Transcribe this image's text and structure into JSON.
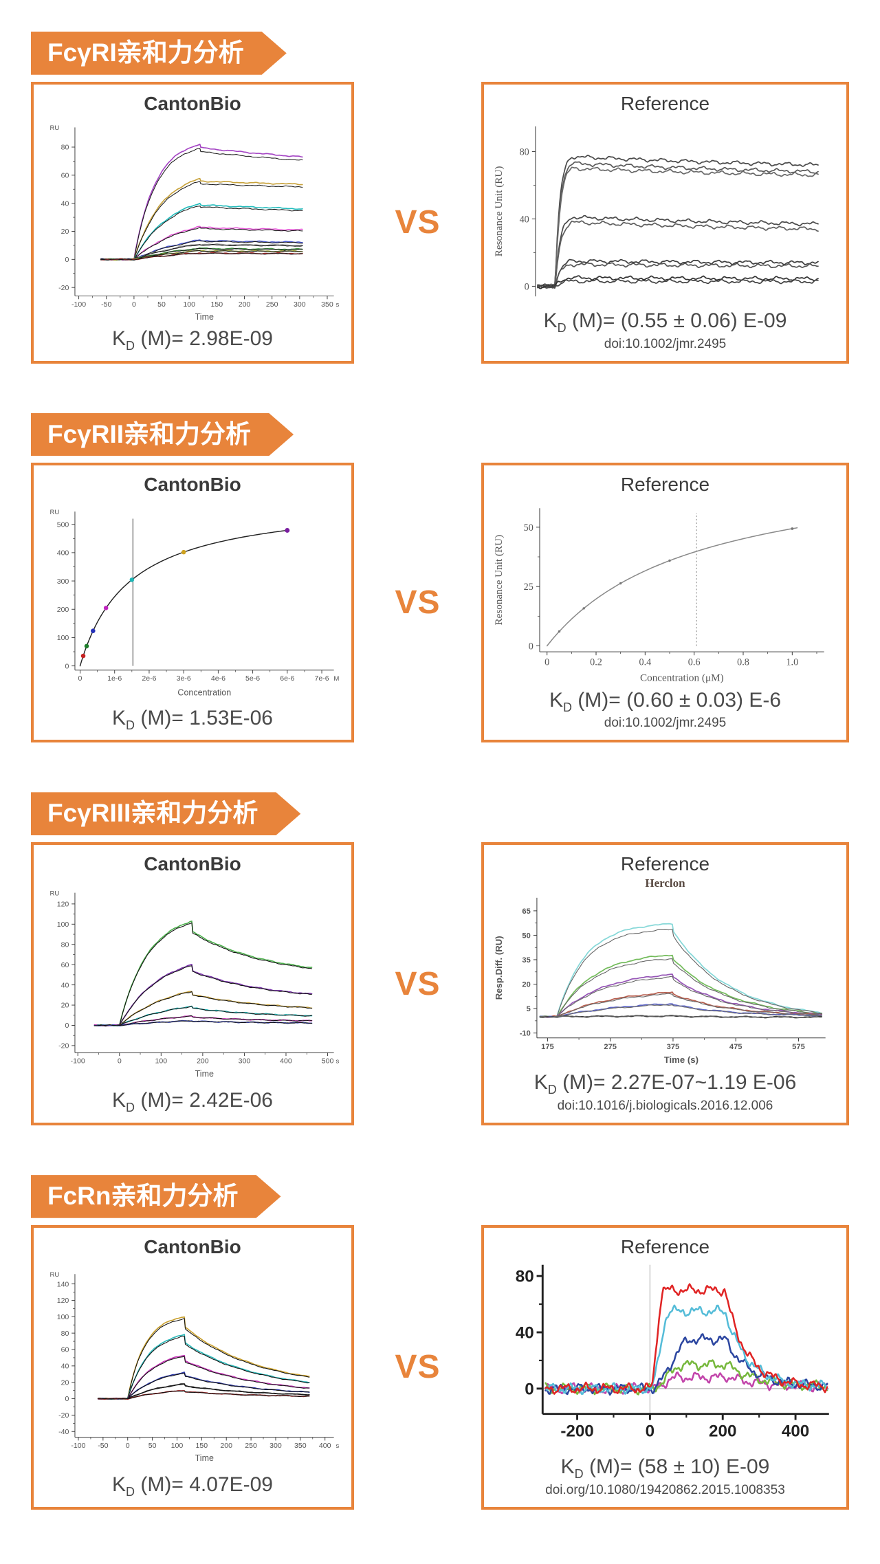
{
  "page": {
    "accent": "#E8843B",
    "background": "#ffffff"
  },
  "sections": [
    {
      "header": "FcγRI亲和力分析",
      "vs": "VS",
      "left": {
        "title": "CantonBio",
        "kd_k": "K",
        "kd_sub": "D",
        "kd_rest": " (M)= 2.98E-09",
        "chart_index": 0
      },
      "right": {
        "title": "Reference",
        "kd_k": "K",
        "kd_sub": "D",
        "kd_rest": " (M)= (0.55 ± 0.06) E-09",
        "doi": "doi:10.1002/jmr.2495",
        "chart_index": 1
      }
    },
    {
      "header": "FcγRII亲和力分析",
      "vs": "VS",
      "left": {
        "title": "CantonBio",
        "kd_k": "K",
        "kd_sub": "D",
        "kd_rest": " (M)= 1.53E-06",
        "chart_index": 2
      },
      "right": {
        "title": "Reference",
        "kd_k": "K",
        "kd_sub": "D",
        "kd_rest": " (M)= (0.60 ± 0.03) E-6",
        "doi": "doi:10.1002/jmr.2495",
        "chart_index": 3
      }
    },
    {
      "header": "FcγRIII亲和力分析",
      "vs": "VS",
      "left": {
        "title": "CantonBio",
        "kd_k": "K",
        "kd_sub": "D",
        "kd_rest": " (M)= 2.42E-06",
        "chart_index": 4
      },
      "right": {
        "title": "Reference",
        "subtitle": "Herclon",
        "kd_k": "K",
        "kd_sub": "D",
        "kd_rest": " (M)= 2.27E-07~1.19 E-06",
        "doi": "doi:10.1016/j.biologicals.2016.12.006",
        "chart_index": 5
      }
    },
    {
      "header": "FcRn亲和力分析",
      "vs": "VS",
      "left": {
        "title": "CantonBio",
        "kd_k": "K",
        "kd_sub": "D",
        "kd_rest": " (M)= 4.07E-09",
        "chart_index": 6
      },
      "right": {
        "title": "Reference",
        "kd_k": "K",
        "kd_sub": "D",
        "kd_rest": " (M)= (58 ± 10) E-09",
        "doi": "doi.org/10.1080/19420862.2015.1008353",
        "chart_index": 7
      }
    }
  ],
  "chart_data": [
    {
      "type": "line",
      "subtype": "kinetic",
      "corner": "RU",
      "xlabel": "Time",
      "x_unit": "s",
      "vb": [
        460,
        315
      ],
      "m": [
        52,
        16,
        16,
        44
      ],
      "x_range": [
        -107,
        362
      ],
      "y_range": [
        -26,
        94
      ],
      "x_ticks": [
        {
          "v": -100,
          "l": "-100"
        },
        {
          "v": -50,
          "l": "-50"
        },
        {
          "v": 0,
          "l": "0"
        },
        {
          "v": 50,
          "l": "50"
        },
        {
          "v": 100,
          "l": "100"
        },
        {
          "v": 150,
          "l": "150"
        },
        {
          "v": 200,
          "l": "200"
        },
        {
          "v": 250,
          "l": "250"
        },
        {
          "v": 300,
          "l": "300"
        },
        {
          "v": 350,
          "l": "350"
        }
      ],
      "x_minor": [
        -75,
        -25,
        25,
        75,
        125,
        175,
        225,
        275,
        325
      ],
      "y_ticks": [
        {
          "v": 80,
          "l": "80"
        },
        {
          "v": 60,
          "l": "60"
        },
        {
          "v": 40,
          "l": "40"
        },
        {
          "v": 20,
          "l": "20"
        },
        {
          "v": 0,
          "l": "0"
        },
        {
          "v": -20,
          "l": "-20"
        }
      ],
      "y_minor": [
        70,
        50,
        30,
        10,
        -10
      ],
      "t_base": -60,
      "t_on": 0,
      "t_peak": 120,
      "t_end": 305,
      "drop": 0.97,
      "decay": 0.35,
      "rise": [
        0.7,
        3.1
      ],
      "noise": 0.25,
      "fit": {
        "color": "#1a1a1a",
        "scale": 0.965
      },
      "series": [
        {
          "color": "#a444c4",
          "peak": 82,
          "end": 73
        },
        {
          "color": "#c8a23a",
          "peak": 57.5,
          "end": 53.5
        },
        {
          "color": "#22bcbc",
          "peak": 40,
          "end": 36
        },
        {
          "color": "#e35ad6",
          "peak": 23.5,
          "end": 21
        },
        {
          "color": "#4a58cc",
          "peak": 13.8,
          "end": 12.2
        },
        {
          "color": "#8c8c8c",
          "peak": 11,
          "end": 10
        },
        {
          "color": "#3f9040",
          "peak": 8,
          "end": 7.2
        },
        {
          "color": "#9aa03c",
          "peak": 6.3,
          "end": 5.8
        },
        {
          "color": "#a02a2a",
          "peak": 4.6,
          "end": 4.2
        }
      ]
    },
    {
      "type": "line",
      "subtype": "kinetic",
      "serif": true,
      "ylabel": "Resonance Unit (RU)",
      "x_axis": false,
      "vb": [
        500,
        270
      ],
      "m": [
        64,
        12,
        18,
        14
      ],
      "tick_fs": 14,
      "label_fs": 15,
      "x_range": [
        -45,
        620
      ],
      "y_range": [
        -6,
        95
      ],
      "y_ticks": [
        {
          "v": 80,
          "l": "80"
        },
        {
          "v": 40,
          "l": "40"
        },
        {
          "v": 0,
          "l": "0"
        }
      ],
      "y_minor": [
        60,
        20
      ],
      "t_base": -40,
      "t_on": 0,
      "t_peak": 38,
      "t_end": 600,
      "drop": 1,
      "decay": 0.7,
      "rise": [
        3.0,
        3.6
      ],
      "noise": 0.7,
      "series": [
        {
          "color": "#4a4a4a",
          "peak": 77,
          "end": 72
        },
        {
          "color": "#5a5a5a",
          "peak": 73,
          "end": 68
        },
        {
          "color": "#6a6a6a",
          "peak": 70,
          "end": 66
        },
        {
          "color": "#4a4a4a",
          "peak": 41,
          "end": 37
        },
        {
          "color": "#5f5f5f",
          "peak": 38,
          "end": 34
        },
        {
          "color": "#3f3f3f",
          "peak": 15,
          "end": 14
        },
        {
          "color": "#555555",
          "peak": 13,
          "end": 12
        },
        {
          "color": "#333333",
          "peak": 5,
          "end": 4.5
        },
        {
          "color": "#444444",
          "peak": 3,
          "end": 2.8
        }
      ]
    },
    {
      "type": "line",
      "subtype": "saturation",
      "corner": "RU",
      "xlabel": "Concentration",
      "x_unit": "M",
      "vb": [
        460,
        300
      ],
      "m": [
        52,
        14,
        16,
        46
      ],
      "x_range": [
        -1.5e-07,
        7.35e-06
      ],
      "y_range": [
        -15,
        545
      ],
      "x_ticks": [
        {
          "v": 0,
          "l": "0"
        },
        {
          "v": 1e-06,
          "l": "1e-6"
        },
        {
          "v": 2e-06,
          "l": "2e-6"
        },
        {
          "v": 3e-06,
          "l": "3e-6"
        },
        {
          "v": 4e-06,
          "l": "4e-6"
        },
        {
          "v": 5e-06,
          "l": "5e-6"
        },
        {
          "v": 6e-06,
          "l": "6e-6"
        },
        {
          "v": 7e-06,
          "l": "7e-6"
        }
      ],
      "x_minor": [
        5e-07,
        1.5e-06,
        2.5e-06,
        3.5e-06,
        4.5e-06,
        5.5e-06,
        6.5e-06
      ],
      "y_ticks": [
        {
          "v": 500,
          "l": "500"
        },
        {
          "v": 400,
          "l": "400"
        },
        {
          "v": 300,
          "l": "300"
        },
        {
          "v": 200,
          "l": "200"
        },
        {
          "v": 100,
          "l": "100"
        },
        {
          "v": 0,
          "l": "0"
        }
      ],
      "y_minor": [
        450,
        350,
        250,
        150,
        50
      ],
      "sat": {
        "rmax": 592,
        "k": 1.42e-06,
        "color": "#222222",
        "xmax": 6.05e-06
      },
      "vline": {
        "x": 1.53e-06,
        "y1": 0,
        "y2": 520,
        "color": "#555555"
      },
      "points": [
        {
          "x": 9e-08,
          "color": "#c42222",
          "r": 3.4
        },
        {
          "x": 1.9e-07,
          "color": "#1e7e2a",
          "r": 3.4
        },
        {
          "x": 3.75e-07,
          "color": "#2430b8",
          "r": 3.4
        },
        {
          "x": 7.5e-07,
          "color": "#c024c0",
          "r": 3.4
        },
        {
          "x": 1.5e-06,
          "color": "#1fb6b6",
          "r": 3.4
        },
        {
          "x": 3e-06,
          "color": "#cfa21e",
          "r": 3.4
        },
        {
          "x": 6e-06,
          "color": "#7a1ea0",
          "r": 3.6
        }
      ]
    },
    {
      "type": "line",
      "subtype": "saturation",
      "serif": true,
      "ylabel": "Resonance Unit (RU)",
      "xlabel": "Concentration (μM)",
      "vb": [
        500,
        270
      ],
      "m": [
        70,
        14,
        22,
        50
      ],
      "tick_fs": 14,
      "label_fs": 15,
      "x_range": [
        -0.03,
        1.13
      ],
      "y_range": [
        -2.5,
        58
      ],
      "x_ticks": [
        {
          "v": 0,
          "l": "0"
        },
        {
          "v": 0.2,
          "l": "0.2"
        },
        {
          "v": 0.4,
          "l": "0.4"
        },
        {
          "v": 0.6,
          "l": "0.6"
        },
        {
          "v": 0.8,
          "l": "0.8"
        },
        {
          "v": 1.0,
          "l": "1.0"
        }
      ],
      "x_minor": [
        0.1,
        0.3,
        0.5,
        0.7,
        0.9,
        1.1
      ],
      "y_ticks": [
        {
          "v": 50,
          "l": "50"
        },
        {
          "v": 25,
          "l": "25"
        },
        {
          "v": 0,
          "l": "0"
        }
      ],
      "y_minor": [
        37.5,
        12.5
      ],
      "sat": {
        "rmax": 79,
        "k": 0.6,
        "color": "#8a8a8a",
        "xmax": 1.02
      },
      "vline": {
        "x": 0.61,
        "y1": 0,
        "y2": 56,
        "color": "#9a9a9a",
        "dash": "2 3"
      },
      "points": [
        {
          "x": 0.05,
          "color": "#777777",
          "r": 1.7
        },
        {
          "x": 0.15,
          "color": "#777777",
          "r": 1.7
        },
        {
          "x": 0.3,
          "color": "#777777",
          "r": 1.7
        },
        {
          "x": 0.5,
          "color": "#777777",
          "r": 1.7
        },
        {
          "x": 1.0,
          "color": "#777777",
          "r": 1.9
        }
      ]
    },
    {
      "type": "line",
      "subtype": "kinetic",
      "corner": "RU",
      "xlabel": "Time",
      "x_unit": "s",
      "vb": [
        460,
        300
      ],
      "m": [
        52,
        14,
        16,
        44
      ],
      "x_range": [
        -107,
        515
      ],
      "y_range": [
        -27,
        131
      ],
      "x_ticks": [
        {
          "v": -100,
          "l": "-100"
        },
        {
          "v": 0,
          "l": "0"
        },
        {
          "v": 100,
          "l": "100"
        },
        {
          "v": 200,
          "l": "200"
        },
        {
          "v": 300,
          "l": "300"
        },
        {
          "v": 400,
          "l": "400"
        },
        {
          "v": 500,
          "l": "500"
        }
      ],
      "x_minor": [
        -50,
        50,
        150,
        250,
        350,
        450
      ],
      "y_ticks": [
        {
          "v": 120,
          "l": "120"
        },
        {
          "v": 100,
          "l": "100"
        },
        {
          "v": 80,
          "l": "80"
        },
        {
          "v": 60,
          "l": "60"
        },
        {
          "v": 40,
          "l": "40"
        },
        {
          "v": 20,
          "l": "20"
        },
        {
          "v": 0,
          "l": "0"
        },
        {
          "v": -20,
          "l": "-20"
        }
      ],
      "y_minor": [
        110,
        90,
        70,
        50,
        30,
        10,
        -10
      ],
      "t_base": -60,
      "t_on": 0,
      "t_peak": 175,
      "t_end": 462,
      "drop": 0.9,
      "decay": 1.6,
      "rise": [
        0.8,
        2.6
      ],
      "noise": 0.3,
      "fit": {
        "color": "#111111",
        "scale": 0.985
      },
      "series": [
        {
          "color": "#4cb04c",
          "peak": 103,
          "end": 57
        },
        {
          "color": "#7a34aa",
          "peak": 60,
          "end": 31
        },
        {
          "color": "#c8a23a",
          "peak": 34,
          "end": 17.5
        },
        {
          "color": "#27b9b9",
          "peak": 19,
          "end": 9.5
        },
        {
          "color": "#cc38bc",
          "peak": 9.2,
          "end": 4.5
        },
        {
          "color": "#3a46b4",
          "peak": 4.6,
          "end": 2.4
        }
      ]
    },
    {
      "type": "line",
      "subtype": "kinetic",
      "ylabel": "Resp.Diff. (RU)",
      "xlabel": "Time (s)",
      "vb": [
        500,
        255
      ],
      "m": [
        66,
        10,
        20,
        44
      ],
      "tick_fs": 11,
      "label_fs": 13,
      "tick_bold": true,
      "label_bold": true,
      "x_range": [
        158,
        618
      ],
      "y_range": [
        -13,
        73
      ],
      "x_ticks": [
        {
          "v": 175,
          "l": "175"
        },
        {
          "v": 275,
          "l": "275"
        },
        {
          "v": 375,
          "l": "375"
        },
        {
          "v": 475,
          "l": "475"
        },
        {
          "v": 575,
          "l": "575"
        }
      ],
      "x_minor": [
        225,
        325,
        425,
        525
      ],
      "y_ticks": [
        {
          "v": 65,
          "l": "65"
        },
        {
          "v": 50,
          "l": "50"
        },
        {
          "v": 35,
          "l": "35"
        },
        {
          "v": 20,
          "l": "20"
        },
        {
          "v": 5,
          "l": "5"
        },
        {
          "v": -10,
          "l": "-10"
        }
      ],
      "y_minor": [
        57.5,
        42.5,
        27.5,
        12.5,
        -2.5
      ],
      "t_base": 163,
      "t_on": 190,
      "t_peak": 375,
      "t_end": 612,
      "drop": 0.93,
      "decay": 2.6,
      "rise": [
        1.2,
        4.2
      ],
      "noise": 0.25,
      "fit": {
        "color": "#686868",
        "scale": 0.94
      },
      "series": [
        {
          "color": "#86d8d8",
          "peak": 57,
          "end": 2.5
        },
        {
          "color": "#74bc5c",
          "peak": 38,
          "end": 2
        },
        {
          "color": "#9656b6",
          "peak": 26,
          "end": 1.5
        },
        {
          "color": "#b65e4e",
          "peak": 15,
          "end": 1.2
        },
        {
          "color": "#5c64c6",
          "peak": 8,
          "end": 0.8
        },
        {
          "color": "#3a3a3a",
          "peak": 0.4,
          "end": -0.3
        }
      ]
    },
    {
      "type": "line",
      "subtype": "kinetic",
      "corner": "RU",
      "xlabel": "Time",
      "x_unit": "s",
      "vb": [
        460,
        305
      ],
      "m": [
        52,
        14,
        16,
        44
      ],
      "x_range": [
        -107,
        418
      ],
      "y_range": [
        -47,
        152
      ],
      "x_ticks": [
        {
          "v": -100,
          "l": "-100"
        },
        {
          "v": -50,
          "l": "-50"
        },
        {
          "v": 0,
          "l": "0"
        },
        {
          "v": 50,
          "l": "50"
        },
        {
          "v": 100,
          "l": "100"
        },
        {
          "v": 150,
          "l": "150"
        },
        {
          "v": 200,
          "l": "200"
        },
        {
          "v": 250,
          "l": "250"
        },
        {
          "v": 300,
          "l": "300"
        },
        {
          "v": 350,
          "l": "350"
        },
        {
          "v": 400,
          "l": "400"
        }
      ],
      "x_minor": [
        -75,
        -25,
        25,
        75,
        125,
        175,
        225,
        275,
        325,
        375
      ],
      "y_ticks": [
        {
          "v": 140,
          "l": "140"
        },
        {
          "v": 120,
          "l": "120"
        },
        {
          "v": 100,
          "l": "100"
        },
        {
          "v": 80,
          "l": "80"
        },
        {
          "v": 60,
          "l": "60"
        },
        {
          "v": 40,
          "l": "40"
        },
        {
          "v": 20,
          "l": "20"
        },
        {
          "v": 0,
          "l": "0"
        },
        {
          "v": -20,
          "l": "-20"
        },
        {
          "v": -40,
          "l": "-40"
        }
      ],
      "y_minor": [
        130,
        110,
        90,
        70,
        50,
        30,
        10,
        -10,
        -30
      ],
      "t_base": -60,
      "t_on": 0,
      "t_peak": 115,
      "t_end": 368,
      "drop": 0.88,
      "decay": 1.7,
      "rise": [
        1.1,
        3.3
      ],
      "noise": 0.3,
      "fit": {
        "color": "#111111",
        "scale": 0.975
      },
      "series": [
        {
          "color": "#c9a02e",
          "peak": 100,
          "end": 27
        },
        {
          "color": "#2bb8b8",
          "peak": 78,
          "end": 20
        },
        {
          "color": "#c232b4",
          "peak": 53,
          "end": 13
        },
        {
          "color": "#2a36a4",
          "peak": 32,
          "end": 8
        },
        {
          "color": "#2e2e2e",
          "peak": 18,
          "end": 5
        },
        {
          "color": "#962222",
          "peak": 10,
          "end": 3
        }
      ]
    },
    {
      "type": "line",
      "subtype": "peak",
      "vb": [
        520,
        292
      ],
      "m": [
        76,
        8,
        14,
        60
      ],
      "tick_fs": 25,
      "tick_bold": true,
      "axis_w": 3,
      "tick_len": 9,
      "tick_color": "#222222",
      "axis_color": "#222222",
      "cross": true,
      "x_range": [
        -295,
        492
      ],
      "y_range": [
        -18,
        88
      ],
      "x_ticks": [
        {
          "v": -200,
          "l": "-200"
        },
        {
          "v": 0,
          "l": "0"
        },
        {
          "v": 200,
          "l": "200"
        },
        {
          "v": 400,
          "l": "400"
        }
      ],
      "x_minor": [
        -100,
        100,
        300
      ],
      "y_ticks": [
        {
          "v": 0,
          "l": "0"
        },
        {
          "v": 40,
          "l": "40"
        },
        {
          "v": 80,
          "l": "80"
        }
      ],
      "y_minor": [
        20,
        60
      ],
      "plateau": 205,
      "noise": 2.2,
      "series": [
        {
          "color": "#c244aa",
          "peak": 8,
          "rise": 80,
          "tau": 90
        },
        {
          "color": "#76b83c",
          "peak": 17,
          "rise": 95,
          "tau": 85
        },
        {
          "color": "#2c46a0",
          "peak": 35,
          "rise": 115,
          "tau": 70
        },
        {
          "color": "#54bcd8",
          "peak": 55,
          "rise": 55,
          "tau": 62
        },
        {
          "color": "#e02424",
          "peak": 70,
          "rise": 38,
          "tau": 58
        }
      ]
    }
  ]
}
